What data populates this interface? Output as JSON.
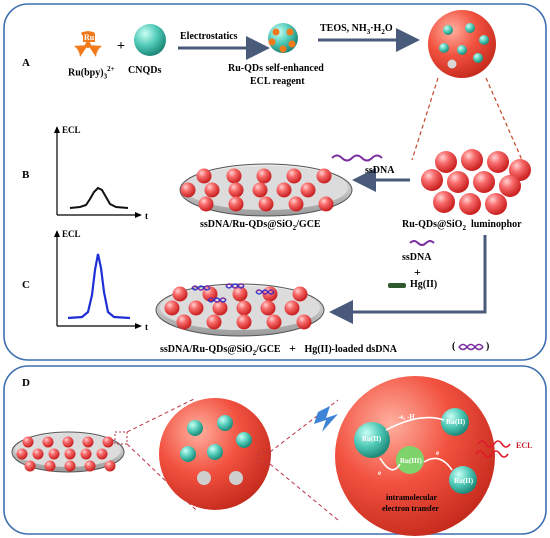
{
  "panel_labels": {
    "a": "A",
    "b": "B",
    "c": "C",
    "d": "D"
  },
  "row_a": {
    "ru_badge": "Ru",
    "ru_name": "Ru(bpy)",
    "ru_sub": "3",
    "ru_sup": "2+",
    "plus": "+",
    "cnqds": "CNQDs",
    "arrow1": "Electrostatics",
    "reagent_line1": "Ru-QDs self-enhanced",
    "reagent_line2": "ECL reagent",
    "arrow2": "TEOS, NH",
    "arrow2_sub": "3",
    "arrow2_tail": "·H",
    "arrow2_sub2": "2",
    "arrow2_end": "O"
  },
  "row_b": {
    "ecl_axis": "ECL",
    "t_axis": "t",
    "ssdna": "ssDNA",
    "electrode_label": "ssDNA/Ru-QDs@SiO",
    "electrode_sub": "2",
    "electrode_tail": "/GCE",
    "luminophor": "Ru-QDs@SiO",
    "luminophor_sub": "2",
    "luminophor_tail": "  luminophor"
  },
  "row_c": {
    "ecl_axis": "ECL",
    "t_axis": "t",
    "ssdna": "ssDNA",
    "plus": "+",
    "hg": "Hg(II)",
    "caption_1": "ssDNA/Ru-QDs@SiO",
    "caption_sub": "2",
    "caption_2": "/GCE",
    "caption_plus": "+",
    "caption_3": "Hg(II)-loaded dsDNA",
    "paren_open": "(",
    "paren_close": ")"
  },
  "panel_d": {
    "ru_label": "Ru(II)",
    "ru3_label": "Ru(III)",
    "e_minus": "e",
    "h_plus": "-e, -H",
    "ecl": "ECL",
    "transfer_line1": "intramolecular",
    "transfer_line2": "electron transfer"
  },
  "colors": {
    "frame": "#3d6fb0",
    "sphere": "#f04a4a",
    "electrode": "#c8c8c8",
    "arrow": "#4a5a7a",
    "blue_peak": "#1f2fd6",
    "black_peak": "#111111",
    "dna": "#7a2fa0"
  }
}
